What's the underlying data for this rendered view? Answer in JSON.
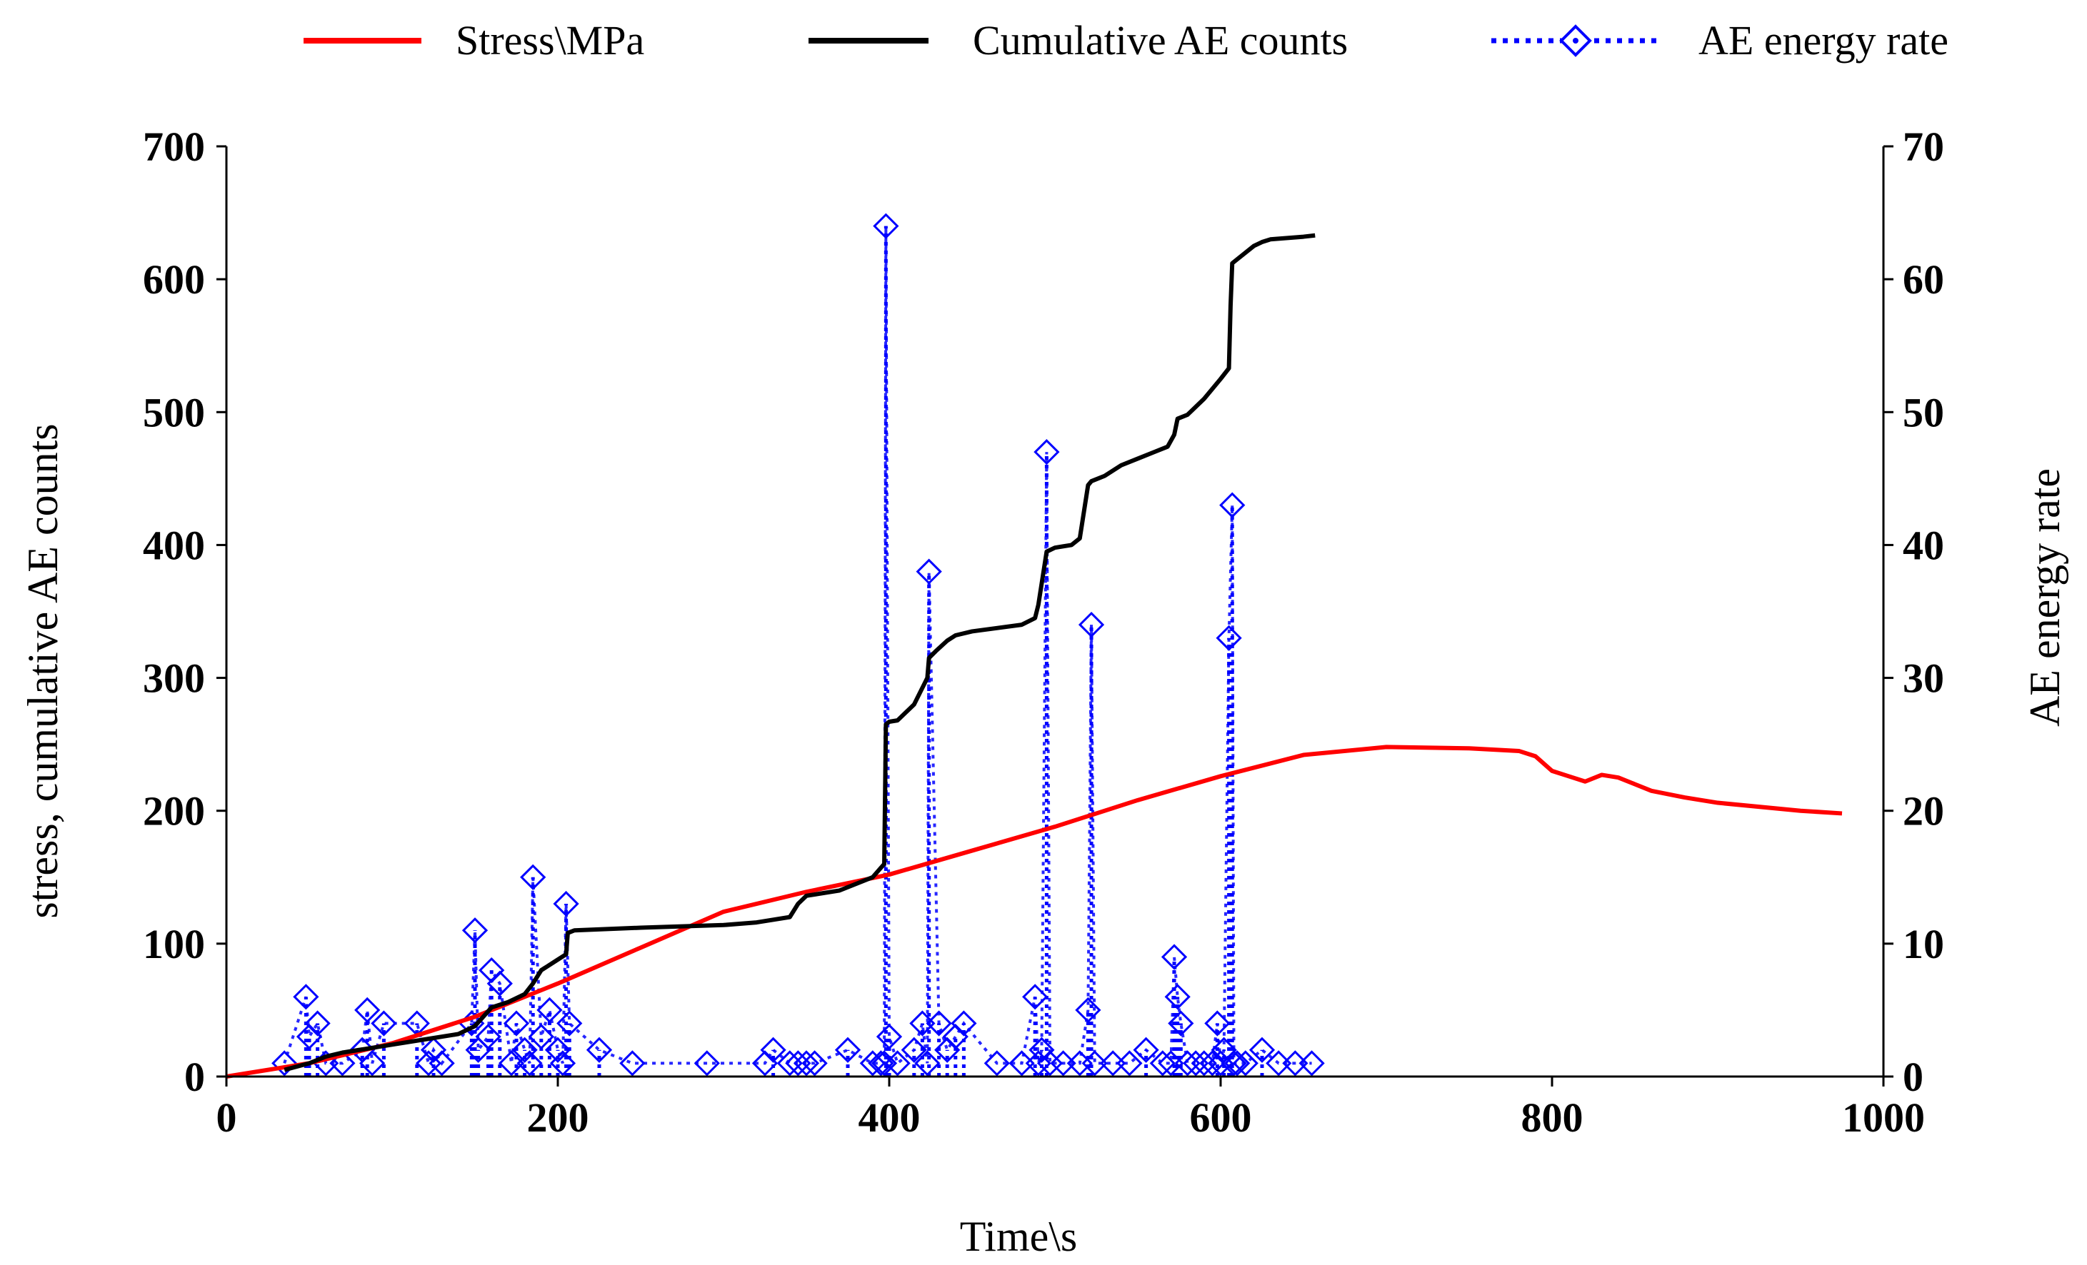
{
  "chart_data": {
    "type": "line",
    "title": "",
    "xlabel": "Time\\s",
    "ylabel": "stress, cumulative  AE counts",
    "y2label": "AE energy rate",
    "xlim": [
      0,
      1000
    ],
    "ylim": [
      0,
      700
    ],
    "y2lim": [
      0,
      70
    ],
    "xticks": [
      "0",
      "200",
      "400",
      "600",
      "800",
      "1000"
    ],
    "yticks": [
      "0",
      "100",
      "200",
      "300",
      "400",
      "500",
      "600",
      "700"
    ],
    "y2ticks": [
      "0",
      "10",
      "20",
      "30",
      "40",
      "50",
      "60",
      "70"
    ],
    "legend": [
      {
        "label": "Stress\\MPa",
        "color": "#ff0000",
        "style": "solid"
      },
      {
        "label": "Cumulative AE counts",
        "color": "#000000",
        "style": "solid"
      },
      {
        "label": "AE energy rate",
        "color": "#0000ff",
        "style": "dotted-diamond"
      }
    ],
    "series": [
      {
        "name": "Stress\\MPa",
        "axis": "left",
        "color": "#ff0000",
        "x": [
          0,
          50,
          100,
          150,
          200,
          250,
          300,
          350,
          400,
          450,
          500,
          550,
          600,
          650,
          700,
          750,
          780,
          790,
          800,
          810,
          820,
          830,
          840,
          850,
          860,
          880,
          900,
          950,
          975
        ],
        "y": [
          0,
          10,
          25,
          45,
          70,
          97,
          124,
          139,
          152,
          170,
          188,
          208,
          226,
          242,
          248,
          247,
          245,
          241,
          230,
          226,
          222,
          227,
          225,
          220,
          215,
          210,
          206,
          200,
          198
        ]
      },
      {
        "name": "Cumulative AE counts",
        "axis": "left",
        "color": "#000000",
        "x": [
          35,
          50,
          60,
          70,
          80,
          90,
          100,
          120,
          140,
          150,
          155,
          160,
          170,
          180,
          185,
          190,
          200,
          205,
          206,
          210,
          250,
          300,
          320,
          340,
          345,
          350,
          370,
          390,
          397,
          398,
          400,
          405,
          415,
          423,
          424,
          428,
          435,
          440,
          450,
          480,
          488,
          490,
          495,
          500,
          510,
          515,
          520,
          522,
          530,
          540,
          550,
          560,
          568,
          572,
          574,
          580,
          590,
          600,
          605,
          606,
          607,
          610,
          620,
          625,
          630,
          650,
          657
        ],
        "y": [
          5,
          10,
          15,
          18,
          20,
          22,
          24,
          28,
          32,
          38,
          45,
          52,
          56,
          62,
          70,
          80,
          88,
          92,
          108,
          110,
          112,
          114,
          116,
          120,
          130,
          136,
          140,
          150,
          160,
          265,
          267,
          268,
          280,
          300,
          315,
          320,
          328,
          332,
          335,
          340,
          345,
          355,
          395,
          398,
          400,
          405,
          445,
          448,
          452,
          460,
          465,
          470,
          474,
          483,
          495,
          498,
          510,
          525,
          533,
          580,
          612,
          615,
          625,
          628,
          630,
          632,
          633
        ]
      },
      {
        "name": "AE energy rate",
        "axis": "right",
        "color": "#0000ff",
        "x": [
          35,
          48,
          50,
          55,
          60,
          70,
          82,
          85,
          88,
          95,
          115,
          122,
          125,
          130,
          148,
          150,
          152,
          158,
          160,
          165,
          172,
          175,
          180,
          183,
          185,
          190,
          195,
          200,
          203,
          205,
          207,
          225,
          245,
          290,
          325,
          330,
          340,
          345,
          350,
          355,
          375,
          390,
          395,
          397,
          398,
          400,
          405,
          415,
          420,
          423,
          424,
          430,
          435,
          440,
          445,
          465,
          480,
          488,
          490,
          492,
          495,
          497,
          505,
          515,
          520,
          522,
          524,
          535,
          545,
          555,
          565,
          570,
          572,
          574,
          576,
          580,
          585,
          590,
          595,
          598,
          600,
          602,
          605,
          607,
          608,
          610,
          615,
          625,
          635,
          645,
          655
        ],
        "y": [
          1,
          6,
          3,
          4,
          1,
          1,
          2,
          5,
          1,
          4,
          4,
          1,
          2,
          1,
          4,
          11,
          2,
          3,
          8,
          7,
          1,
          4,
          2,
          1,
          15,
          3,
          5,
          2,
          1,
          13,
          4,
          2,
          1,
          1,
          1,
          2,
          1,
          1,
          1,
          1,
          2,
          1,
          1,
          1,
          64,
          3,
          1,
          2,
          4,
          1,
          38,
          4,
          2,
          3,
          4,
          1,
          1,
          6,
          1,
          2,
          47,
          1,
          1,
          1,
          5,
          34,
          1,
          1,
          1,
          2,
          1,
          1,
          9,
          6,
          4,
          1,
          1,
          1,
          1,
          4,
          1,
          2,
          33,
          43,
          1,
          1,
          1,
          2,
          1,
          1,
          1
        ]
      }
    ]
  }
}
